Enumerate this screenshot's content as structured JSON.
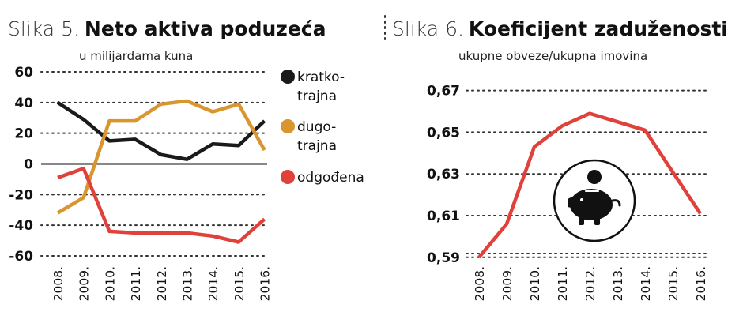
{
  "chart_data": [
    {
      "type": "line",
      "title_prefix": "Slika 5.",
      "title": "Neto aktiva poduzeća",
      "subtitle": "u milijardama kuna",
      "categories": [
        "2008.",
        "2009.",
        "2010.",
        "2011.",
        "2012.",
        "2013.",
        "2014.",
        "2015.",
        "2016."
      ],
      "ylim": [
        -60,
        60
      ],
      "yticks": [
        "60",
        "40",
        "20",
        "0",
        "-20",
        "-40",
        "-60"
      ],
      "series": [
        {
          "name": "kratko-trajna",
          "legend_lines": [
            "kratko-",
            "trajna"
          ],
          "color": "#1a1a1a",
          "values": [
            40,
            29,
            15,
            16,
            6,
            3,
            13,
            12,
            28
          ]
        },
        {
          "name": "dugo-trajna",
          "legend_lines": [
            "dugo-",
            "trajna"
          ],
          "color": "#d9952e",
          "values": [
            -32,
            -22,
            28,
            28,
            39,
            41,
            34,
            39,
            9
          ]
        },
        {
          "name": "odgođena",
          "legend_lines": [
            "odgođena"
          ],
          "color": "#e0413a",
          "values": [
            -9,
            -3,
            -44,
            -45,
            -45,
            -45,
            -47,
            -51,
            -36
          ]
        }
      ]
    },
    {
      "type": "line",
      "title_prefix": "Slika 6.",
      "title": "Koeficijent zaduženosti",
      "subtitle": "ukupne obveze/ukupna imovina",
      "categories": [
        "2008.",
        "2009.",
        "2010.",
        "2011.",
        "2012.",
        "2013.",
        "2014.",
        "2015.",
        "2016."
      ],
      "ylim": [
        0.585,
        0.671
      ],
      "yticks": [
        "0,67",
        "0,65",
        "0,63",
        "0,61",
        "0,59"
      ],
      "series": [
        {
          "name": "koeficijent zaduženosti",
          "color": "#e0413a",
          "values": [
            0.59,
            0.606,
            0.643,
            0.653,
            0.659,
            0.655,
            0.651,
            0.631,
            0.611
          ]
        }
      ],
      "icon": "piggy-bank-icon"
    }
  ]
}
